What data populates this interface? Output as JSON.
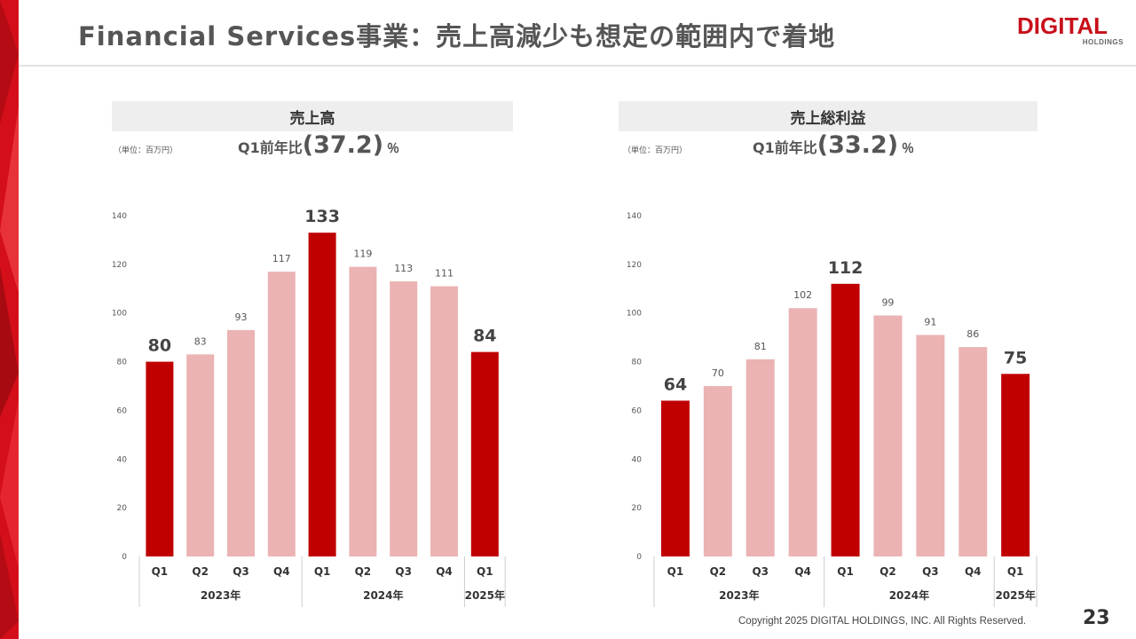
{
  "title": "Financial Services事業：売上高減少も想定の範囲内で着地",
  "logo": {
    "main": "DIGITAL",
    "sub": "HOLDINGS",
    "color": "#c8101a"
  },
  "colors": {
    "highlight": "#c00000",
    "normal": "#ebb3b3",
    "accent_stripe": "#d40f1a"
  },
  "panels": {
    "revenue": {
      "header": "売上高",
      "unit": "（単位：百万円）",
      "yoy_label": "Q1前年比",
      "yoy_value": "(37.2)",
      "yoy_suffix": "％"
    },
    "gross_profit": {
      "header": "売上総利益",
      "unit": "（単位：百万円）",
      "yoy_label": "Q1前年比",
      "yoy_value": "(33.2)",
      "yoy_suffix": "％"
    }
  },
  "chart_data": [
    {
      "type": "bar",
      "title": "売上高",
      "categories": [
        "Q1",
        "Q2",
        "Q3",
        "Q4",
        "Q1",
        "Q2",
        "Q3",
        "Q4",
        "Q1"
      ],
      "groups": [
        {
          "label": "2023年",
          "span": 4
        },
        {
          "label": "2024年",
          "span": 4
        },
        {
          "label": "2025年",
          "span": 1
        }
      ],
      "values": [
        80,
        83,
        93,
        117,
        133,
        119,
        113,
        111,
        84
      ],
      "highlight": [
        true,
        false,
        false,
        false,
        true,
        false,
        false,
        false,
        true
      ],
      "ylim": [
        0,
        140
      ],
      "yticks": [
        0,
        20,
        40,
        60,
        80,
        100,
        120,
        140
      ]
    },
    {
      "type": "bar",
      "title": "売上総利益",
      "categories": [
        "Q1",
        "Q2",
        "Q3",
        "Q4",
        "Q1",
        "Q2",
        "Q3",
        "Q4",
        "Q1"
      ],
      "groups": [
        {
          "label": "2023年",
          "span": 4
        },
        {
          "label": "2024年",
          "span": 4
        },
        {
          "label": "2025年",
          "span": 1
        }
      ],
      "values": [
        64,
        70,
        81,
        102,
        112,
        99,
        91,
        86,
        75
      ],
      "highlight": [
        true,
        false,
        false,
        false,
        true,
        false,
        false,
        false,
        true
      ],
      "ylim": [
        0,
        140
      ],
      "yticks": [
        0,
        20,
        40,
        60,
        80,
        100,
        120,
        140
      ]
    }
  ],
  "footer": {
    "copyright": "Copyright 2025 DIGITAL HOLDINGS, INC. All Rights Reserved.",
    "page": "23"
  }
}
